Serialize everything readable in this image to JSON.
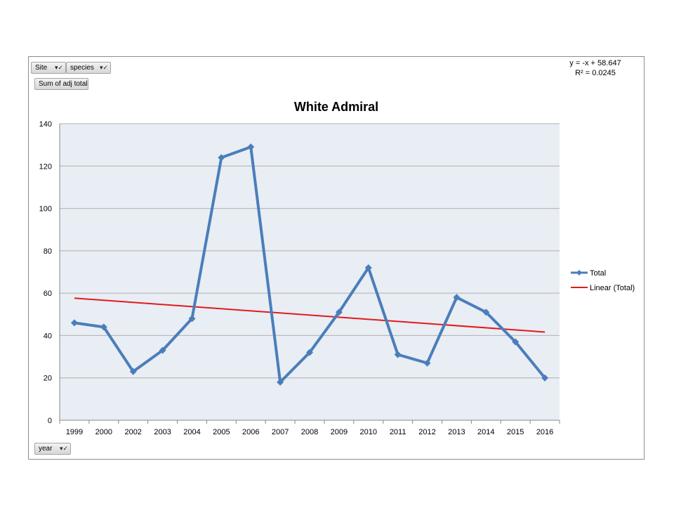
{
  "pivot_buttons": {
    "site": "Site",
    "species": "species",
    "value_field": "Sum of adj total",
    "axis_field": "year"
  },
  "trendline_equation": "y = -x + 58.647",
  "trendline_r2": "R² = 0.0245",
  "colors": {
    "series": "#4a7ebb",
    "trend": "#e31a1c",
    "plot_bg": "#e9edf4",
    "grid": "#b0b0b0"
  },
  "chart_data": {
    "type": "line",
    "title": "White Admiral",
    "xlabel": "",
    "ylabel": "",
    "categories": [
      "1999",
      "2000",
      "2002",
      "2003",
      "2004",
      "2005",
      "2006",
      "2007",
      "2008",
      "2009",
      "2010",
      "2011",
      "2012",
      "2013",
      "2014",
      "2015",
      "2016"
    ],
    "series": [
      {
        "name": "Total",
        "values": [
          46,
          44,
          23,
          33,
          48,
          124,
          129,
          18,
          32,
          51,
          72,
          31,
          27,
          58,
          51,
          37,
          20
        ]
      },
      {
        "name": "Linear (Total)",
        "trendline": true,
        "start": 57.647,
        "end": 41.647
      }
    ],
    "ylim": [
      0,
      140
    ],
    "yticks": [
      0,
      20,
      40,
      60,
      80,
      100,
      120,
      140
    ],
    "grid": true,
    "legend": "right"
  }
}
